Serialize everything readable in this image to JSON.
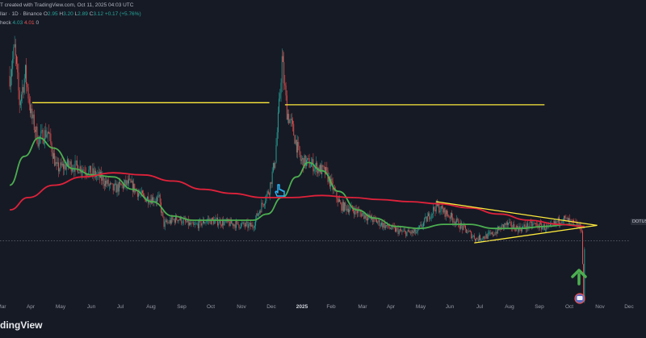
{
  "header": {
    "credit": "T created with TradingView.com, Oct 11, 2025 04:03 UTC",
    "symbol_line": {
      "prefix": "llar · 1D · Binance",
      "o_label": "O",
      "o_value": "2.95",
      "h_label": "H",
      "h_value": "3.20",
      "l_label": "L",
      "l_value": "2.89",
      "c_label": "C",
      "c_value": "3.12",
      "change": "+0.17 (+5.76%)"
    },
    "indicator_line": {
      "prefix": "heck",
      "v1": "4.03",
      "v2": "4.01",
      "v3": "0"
    }
  },
  "price_tag": "DOTUS",
  "logo_text": "dingView",
  "colors": {
    "background": "#161a25",
    "up_candle": "#26a69a",
    "down_candle": "#ef5350",
    "ma_fast": "#4caf50",
    "ma_slow": "#e0223a",
    "trendline": "#ffeb3b",
    "arrow": "#4caf50",
    "hand_icon": "#29b6f6"
  },
  "icons": {
    "hand": "pointing-hand-icon",
    "arrow": "up-arrow-icon",
    "event": "dividend-event-icon"
  },
  "chart_data": {
    "type": "candlestick",
    "title": "",
    "xlabel": "",
    "ylabel": "",
    "x_ticks": [
      "Mar",
      "Apr",
      "May",
      "Jun",
      "Jul",
      "Aug",
      "Sep",
      "Oct",
      "Nov",
      "Dec",
      "2025",
      "Feb",
      "Mar",
      "Apr",
      "May",
      "Jun",
      "Jul",
      "Aug",
      "Sep",
      "Oct",
      "Nov",
      "Dec"
    ],
    "year_tick": "2025",
    "grid": false,
    "price_path": [
      [
        "2024-03-01",
        11.5
      ],
      [
        "2024-03-06",
        12.8
      ],
      [
        "2024-03-11",
        10.2
      ],
      [
        "2024-03-17",
        11.6
      ],
      [
        "2024-03-23",
        9.6
      ],
      [
        "2024-03-30",
        8.4
      ],
      [
        "2024-04-09",
        8.8
      ],
      [
        "2024-04-18",
        7.0
      ],
      [
        "2024-05-01",
        7.2
      ],
      [
        "2024-05-15",
        7.0
      ],
      [
        "2024-06-01",
        6.6
      ],
      [
        "2024-06-15",
        6.0
      ],
      [
        "2024-07-01",
        6.3
      ],
      [
        "2024-07-16",
        5.6
      ],
      [
        "2024-08-01",
        5.5
      ],
      [
        "2024-08-06",
        4.3
      ],
      [
        "2024-08-20",
        4.6
      ],
      [
        "2024-09-05",
        4.2
      ],
      [
        "2024-09-20",
        4.5
      ],
      [
        "2024-10-05",
        4.4
      ],
      [
        "2024-10-20",
        4.3
      ],
      [
        "2024-11-05",
        4.2
      ],
      [
        "2024-11-12",
        5.0
      ],
      [
        "2024-11-22",
        6.0
      ],
      [
        "2024-11-28",
        7.5
      ],
      [
        "2024-12-02",
        10.0
      ],
      [
        "2024-12-05",
        12.3
      ],
      [
        "2024-12-10",
        9.8
      ],
      [
        "2024-12-16",
        8.9
      ],
      [
        "2024-12-24",
        7.4
      ],
      [
        "2025-01-05",
        7.2
      ],
      [
        "2025-01-19",
        6.8
      ],
      [
        "2025-02-03",
        5.2
      ],
      [
        "2025-02-17",
        5.0
      ],
      [
        "2025-03-05",
        4.6
      ],
      [
        "2025-03-22",
        4.2
      ],
      [
        "2025-04-08",
        3.9
      ],
      [
        "2025-04-22",
        3.9
      ],
      [
        "2025-05-12",
        5.2
      ],
      [
        "2025-05-26",
        4.7
      ],
      [
        "2025-06-09",
        4.1
      ],
      [
        "2025-06-22",
        3.6
      ],
      [
        "2025-07-08",
        3.8
      ],
      [
        "2025-07-22",
        4.3
      ],
      [
        "2025-08-05",
        4.1
      ],
      [
        "2025-08-20",
        4.3
      ],
      [
        "2025-09-05",
        4.1
      ],
      [
        "2025-09-18",
        4.6
      ],
      [
        "2025-10-01",
        4.3
      ],
      [
        "2025-10-08",
        4.1
      ],
      [
        "2025-10-10",
        0.6
      ],
      [
        "2025-10-11",
        3.1
      ]
    ],
    "series": [
      {
        "type": "line",
        "color": "#4caf50",
        "points": [
          [
            "2024-03-01",
            6.2
          ],
          [
            "2024-03-16",
            7.6
          ],
          [
            "2024-03-31",
            8.5
          ],
          [
            "2024-04-15",
            8.0
          ],
          [
            "2024-05-05",
            7.0
          ],
          [
            "2024-05-25",
            6.7
          ],
          [
            "2024-06-15",
            6.6
          ],
          [
            "2024-07-05",
            6.0
          ],
          [
            "2024-07-25",
            5.4
          ],
          [
            "2024-08-15",
            4.7
          ],
          [
            "2024-09-05",
            4.5
          ],
          [
            "2024-10-05",
            4.5
          ],
          [
            "2024-11-05",
            4.5
          ],
          [
            "2024-11-20",
            4.8
          ],
          [
            "2024-12-05",
            5.6
          ],
          [
            "2024-12-20",
            6.6
          ],
          [
            "2025-01-01",
            7.3
          ],
          [
            "2025-01-15",
            6.9
          ],
          [
            "2025-02-01",
            5.9
          ],
          [
            "2025-02-20",
            5.0
          ],
          [
            "2025-03-10",
            4.6
          ],
          [
            "2025-04-01",
            4.2
          ],
          [
            "2025-04-25",
            4.1
          ],
          [
            "2025-05-20",
            4.3
          ],
          [
            "2025-06-15",
            4.3
          ],
          [
            "2025-07-10",
            4.1
          ],
          [
            "2025-08-05",
            4.1
          ],
          [
            "2025-09-01",
            4.2
          ],
          [
            "2025-09-25",
            4.3
          ],
          [
            "2025-10-11",
            4.15
          ]
        ]
      },
      {
        "type": "line",
        "color": "#e0223a",
        "points": [
          [
            "2024-03-01",
            5.0
          ],
          [
            "2024-03-20",
            5.6
          ],
          [
            "2024-04-15",
            6.2
          ],
          [
            "2024-05-15",
            6.6
          ],
          [
            "2024-06-15",
            6.8
          ],
          [
            "2024-07-15",
            6.7
          ],
          [
            "2024-08-15",
            6.4
          ],
          [
            "2024-09-15",
            6.0
          ],
          [
            "2024-10-15",
            5.8
          ],
          [
            "2024-11-15",
            5.6
          ],
          [
            "2024-12-15",
            5.6
          ],
          [
            "2025-01-15",
            5.7
          ],
          [
            "2025-02-15",
            5.6
          ],
          [
            "2025-03-15",
            5.5
          ],
          [
            "2025-04-15",
            5.4
          ],
          [
            "2025-05-15",
            5.3
          ],
          [
            "2025-06-15",
            5.1
          ],
          [
            "2025-07-15",
            4.8
          ],
          [
            "2025-08-15",
            4.5
          ],
          [
            "2025-09-15",
            4.3
          ],
          [
            "2025-10-11",
            4.2
          ]
        ]
      }
    ],
    "trendlines": [
      {
        "color": "#ffeb3b",
        "from": [
          "2024-03-24",
          10.2
        ],
        "to": [
          "2024-11-22",
          10.2
        ]
      },
      {
        "color": "#ffeb3b",
        "from": [
          "2024-12-08",
          10.1
        ],
        "to": [
          "2025-08-31",
          10.1
        ]
      },
      {
        "color": "#ffeb3b",
        "from": [
          "2025-05-12",
          5.4
        ],
        "to": [
          "2025-10-24",
          4.25
        ]
      },
      {
        "color": "#ffeb3b",
        "from": [
          "2025-06-20",
          3.4
        ],
        "to": [
          "2025-10-24",
          4.25
        ]
      }
    ],
    "horizontal_price_line": 3.5
  }
}
